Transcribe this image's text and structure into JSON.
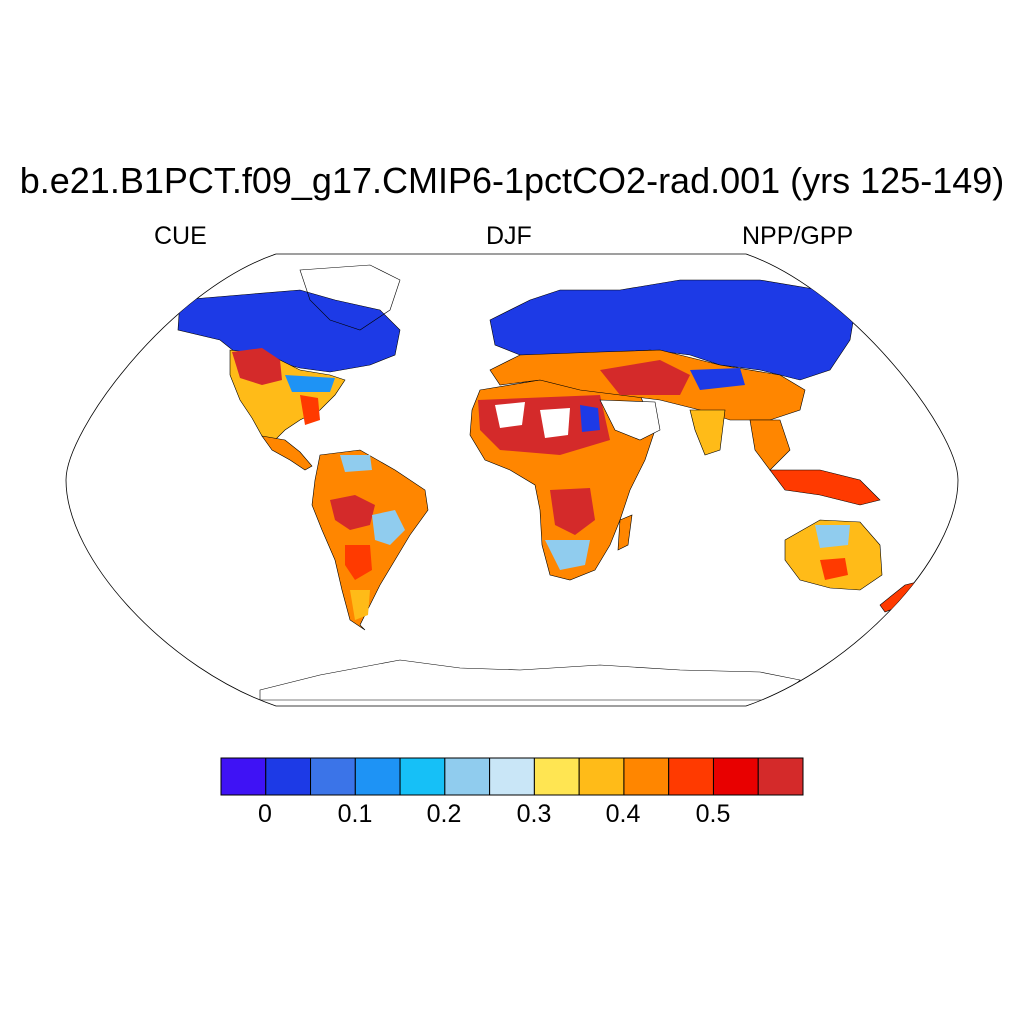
{
  "title": "b.e21.B1PCT.f09_g17.CMIP6-1pctCO2-rad.001 (yrs 125-149)",
  "left_string": "CUE",
  "center_string": "DJF",
  "right_string": "NPP/GPP",
  "map": {
    "projection": "robinson",
    "grid": false,
    "land_only": true
  },
  "colorbar": {
    "colors": [
      "#3f12f5",
      "#1d3ae6",
      "#3b74e8",
      "#1e93f5",
      "#16c0f7",
      "#90ccee",
      "#c9e6f7",
      "#ffe552",
      "#ffbb18",
      "#ff8600",
      "#ff3a00",
      "#e80000",
      "#d42a2a"
    ],
    "tick_labels": [
      "0",
      "0.1",
      "0.2",
      "0.3",
      "0.4",
      "0.5"
    ],
    "tick_values": [
      0,
      0.1,
      0.2,
      0.3,
      0.4,
      0.5
    ]
  }
}
